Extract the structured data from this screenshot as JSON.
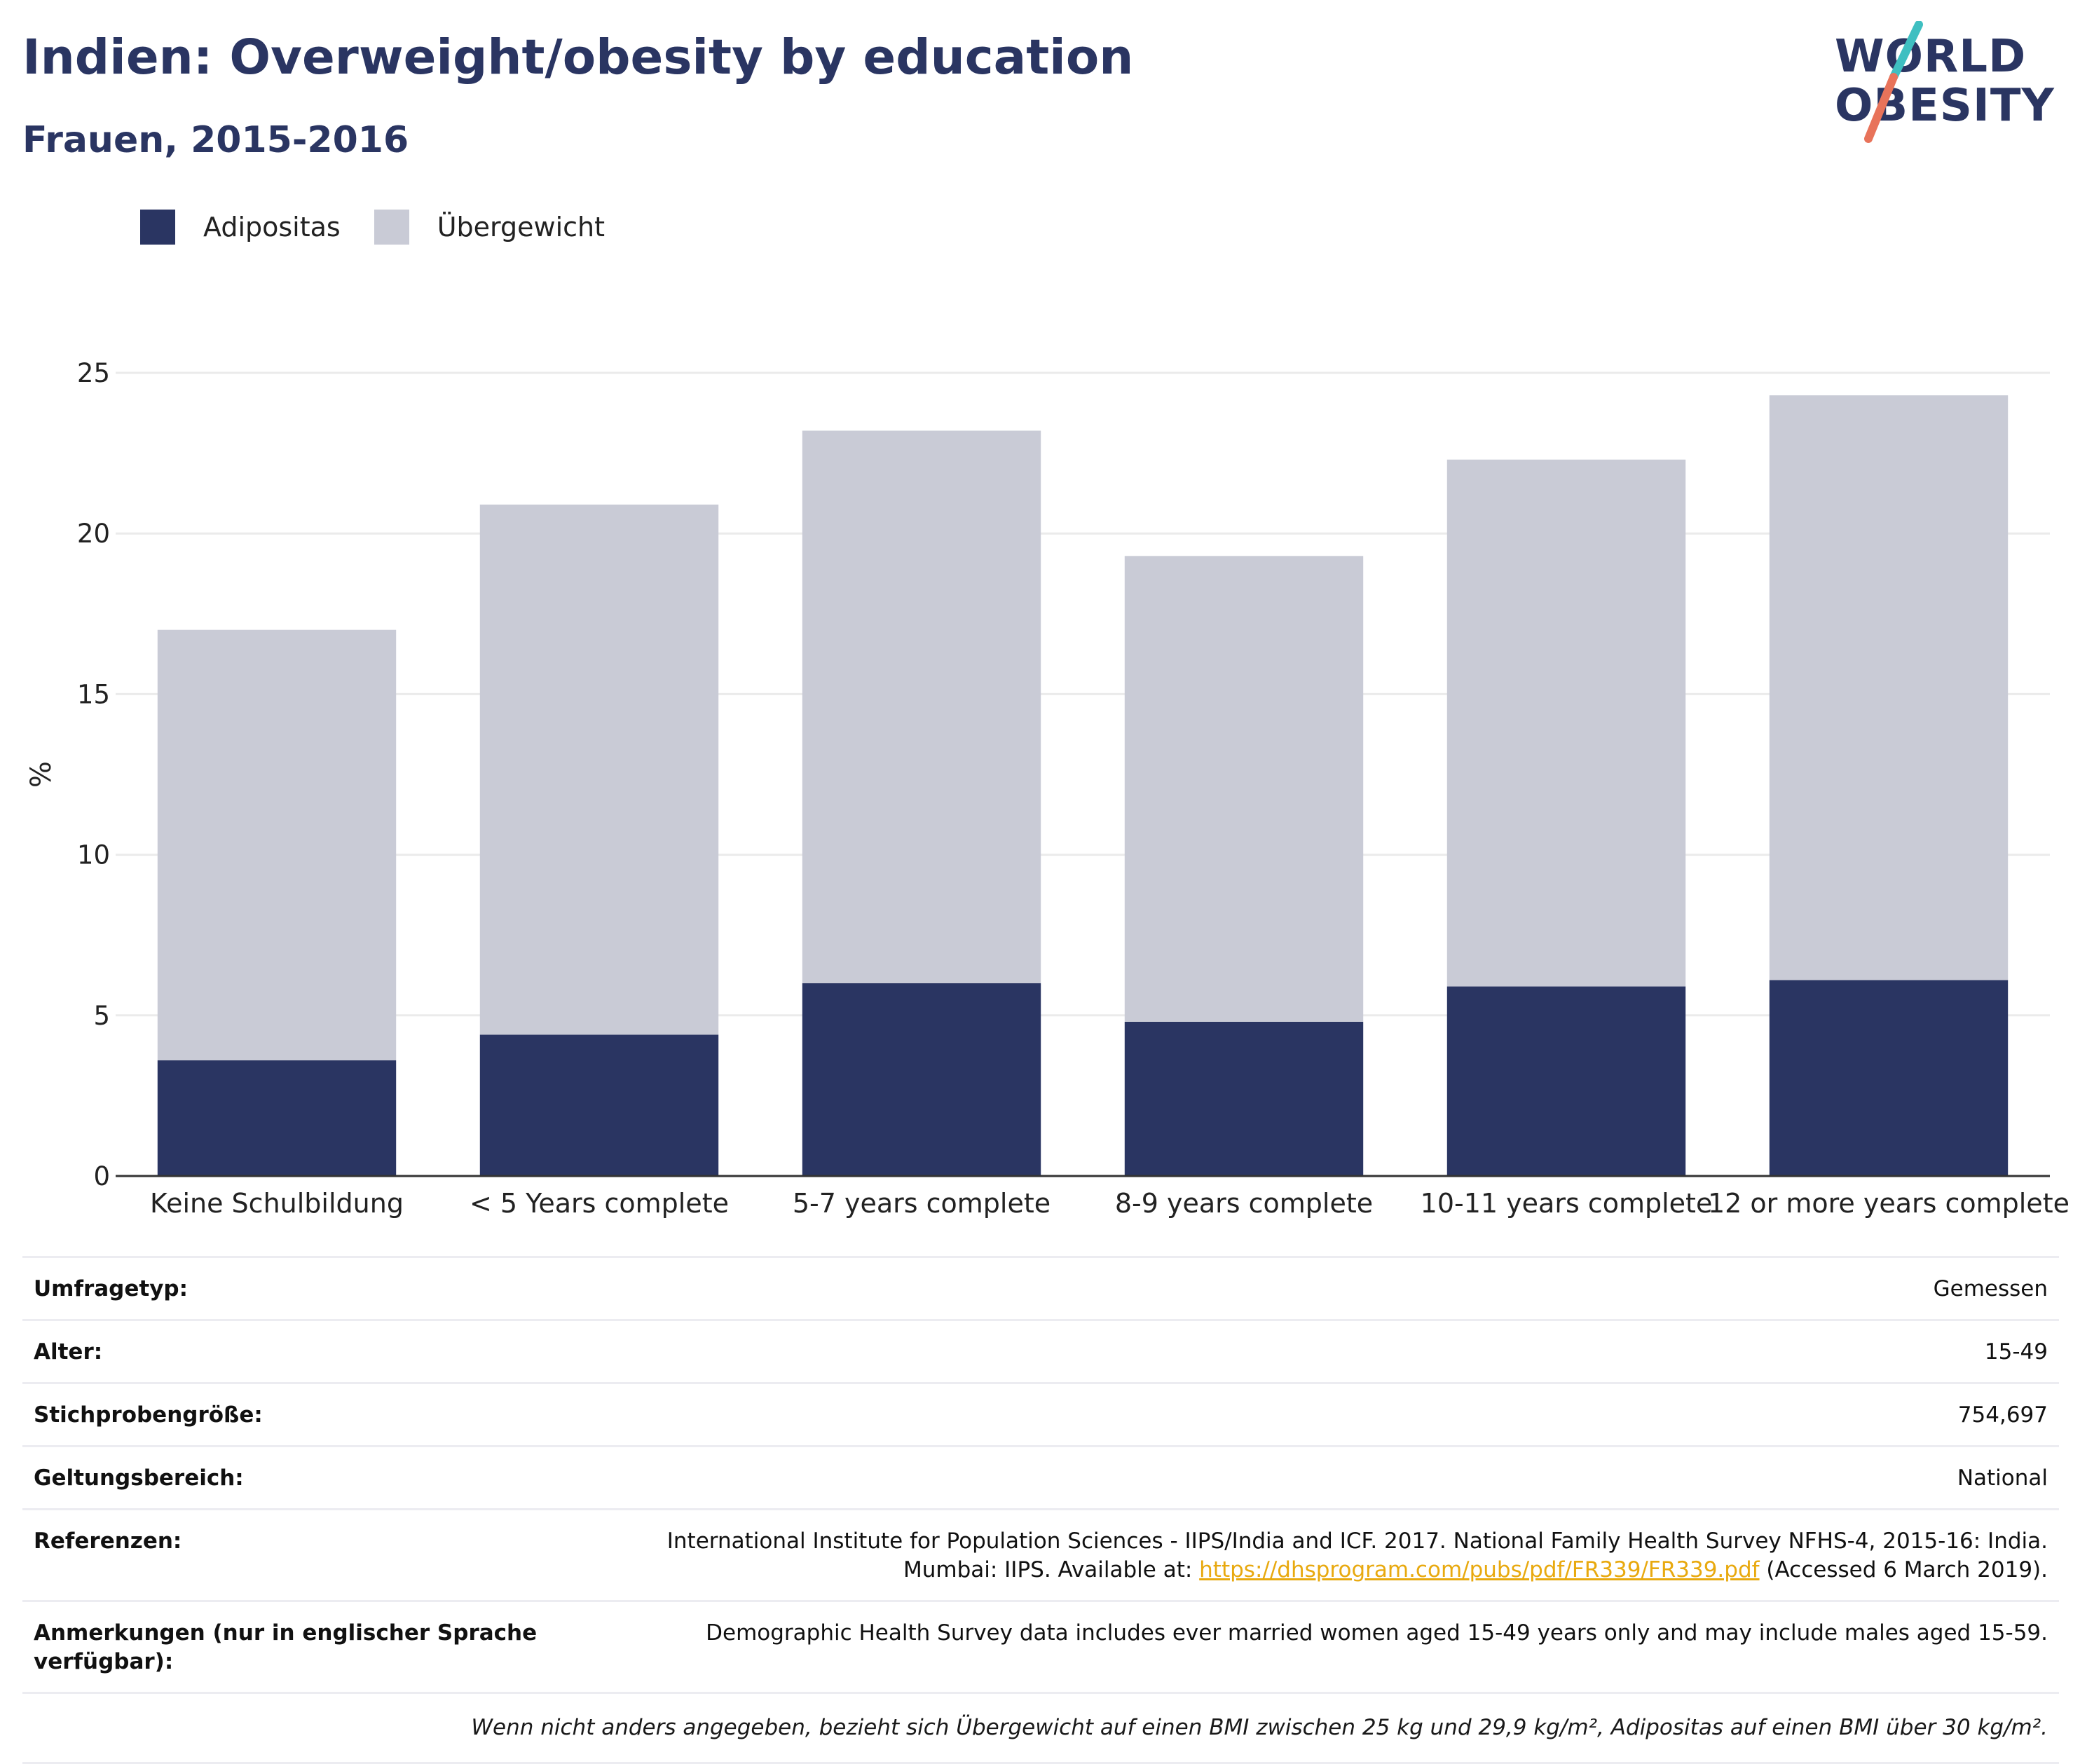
{
  "header": {
    "title": "Indien: Overweight/obesity by education",
    "subtitle": "Frauen, 2015-2016"
  },
  "logo": {
    "line1": "WORLD",
    "line2": "OBESITY"
  },
  "colors": {
    "obesity": "#2a3562",
    "overweight": "#c9cbd6",
    "accent_teal": "#3fbfc1",
    "accent_coral": "#e8735a"
  },
  "chart_data": {
    "type": "bar",
    "stacked": true,
    "categories": [
      "Keine Schulbildung",
      "< 5 Years complete",
      "5-7 years complete",
      "8-9 years complete",
      "10-11 years complete",
      "12 or more years complete"
    ],
    "series": [
      {
        "name": "Adipositas",
        "values": [
          3.6,
          4.4,
          6.0,
          4.8,
          5.9,
          6.1
        ]
      },
      {
        "name": "Übergewicht",
        "values": [
          13.4,
          16.5,
          17.2,
          14.5,
          16.4,
          18.2
        ]
      }
    ],
    "ylabel": "%",
    "ylim": [
      0,
      25
    ],
    "yticks": [
      "0",
      "5",
      "10",
      "15",
      "20",
      "25"
    ],
    "grid": true,
    "legend_position": "top-left"
  },
  "info": {
    "rows": [
      {
        "key": "Umfragetyp:",
        "value": "Gemessen"
      },
      {
        "key": "Alter:",
        "value": "15-49"
      },
      {
        "key": "Stichprobengröße:",
        "value": "754,697"
      },
      {
        "key": "Geltungsbereich:",
        "value": "National"
      }
    ],
    "references": {
      "key": "Referenzen:",
      "line1": "International Institute for Population Sciences - IIPS/India and ICF. 2017. National Family Health Survey NFHS-4, 2015-16: India.",
      "line2_pre": "Mumbai: IIPS. Available at: ",
      "link": "https://dhsprogram.com/pubs/pdf/FR339/FR339.pdf",
      "line2_post": " (Accessed 6 March 2019)."
    },
    "notes": {
      "key": "Anmerkungen (nur in englischer Sprache verfügbar):",
      "value": "Demographic Health Survey data includes ever married women aged 15-49 years only and may include males aged 15-59."
    },
    "footnote": "Wenn nicht anders angegeben, bezieht sich Übergewicht auf einen BMI zwischen 25 kg und 29,9 kg/m², Adipositas auf einen BMI über 30 kg/m²."
  }
}
